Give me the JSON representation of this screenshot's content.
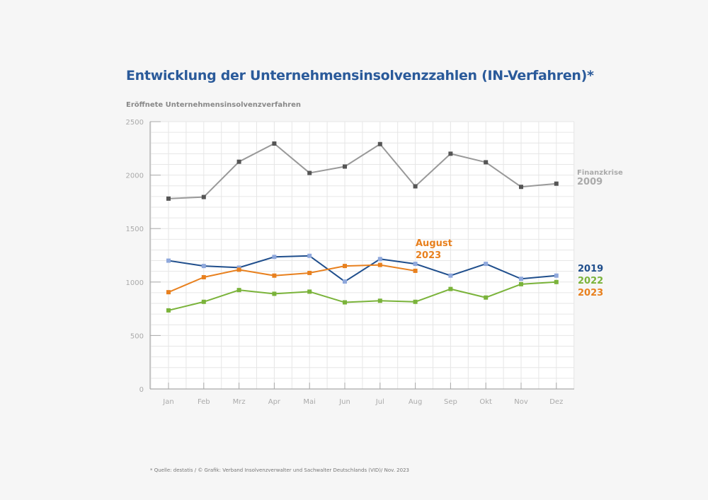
{
  "header": {
    "title": "Entwicklung der Unternehmensinsolvenzzahlen (IN-Verfahren)*",
    "ylabel": "Eröffnete Unternehmensinsolvenzverfahren"
  },
  "footnote": "* Quelle: destatis / © Grafik: Verband Insolvenzverwalter und Sachwalter Deutschlands (VID)/ Nov. 2023",
  "chart_data": {
    "type": "line",
    "title": "Entwicklung der Unternehmensinsolvenzzahlen (IN-Verfahren)*",
    "xlabel": "",
    "ylabel": "Eröffnete Unternehmensinsolvenzverfahren",
    "categories": [
      "Jan",
      "Feb",
      "Mrz",
      "Apr",
      "Mai",
      "Jun",
      "Jul",
      "Aug",
      "Sep",
      "Okt",
      "Nov",
      "Dez"
    ],
    "ylim": [
      0,
      2500
    ],
    "yticks": [
      0,
      500,
      1000,
      1500,
      2000,
      2500
    ],
    "ytick_labels": [
      "0",
      "500",
      "1000",
      "1500",
      "2000",
      "2500"
    ],
    "grid": true,
    "series": [
      {
        "name": "2009",
        "label_lines": [
          "Finanzkrise",
          "2009"
        ],
        "color": "#999999",
        "marker_color": "#555555",
        "values": [
          1780,
          1795,
          2125,
          2295,
          2020,
          2080,
          2290,
          1895,
          2200,
          2120,
          1890,
          1920
        ]
      },
      {
        "name": "2019",
        "label_lines": [
          "2019"
        ],
        "color": "#1f4e8c",
        "marker_color": "#8fa8dc",
        "values": [
          1200,
          1150,
          1135,
          1235,
          1245,
          1005,
          1215,
          1170,
          1060,
          1170,
          1030,
          1060
        ]
      },
      {
        "name": "2022",
        "label_lines": [
          "2022"
        ],
        "color": "#7ab33a",
        "marker_color": "#7ab33a",
        "values": [
          735,
          815,
          925,
          890,
          910,
          810,
          825,
          815,
          935,
          855,
          980,
          1000
        ]
      },
      {
        "name": "2023",
        "label_lines": [
          "2023"
        ],
        "color": "#e8801e",
        "marker_color": "#e8801e",
        "values": [
          905,
          1045,
          1115,
          1060,
          1085,
          1150,
          1160,
          1105
        ]
      }
    ],
    "annotations": [
      {
        "text_lines": [
          "August",
          "2023"
        ],
        "color": "#e8801e",
        "at": "Aug"
      }
    ],
    "legend": "right end labels"
  }
}
